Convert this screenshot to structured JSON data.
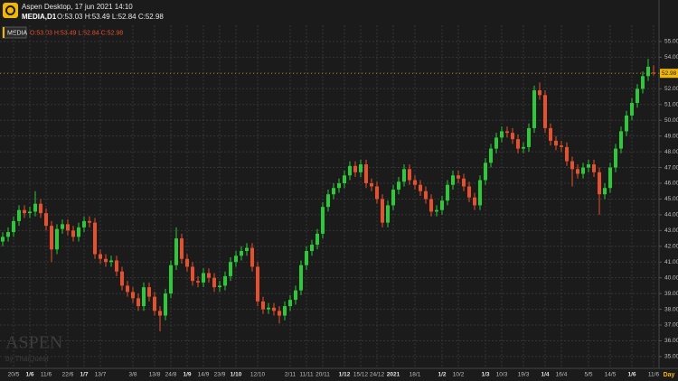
{
  "chart_data": {
    "type": "candlestick",
    "title": "Aspen Desktop, 17 jun 2021 14:10",
    "symbol": "MEDIA,D1",
    "ohlc_text": "O:53.03 H:53.49 L:52.84 C:52.98",
    "legend_label": "MEDIA",
    "watermark": "ASPEN",
    "watermark_sub": "by ThaiQuest",
    "period": "Day",
    "up_color": "#2ec93a",
    "down_color": "#e5502f",
    "grid": true,
    "ylim": [
      34.25,
      56.03
    ],
    "yticks": [
      {
        "value": 35,
        "label": "35.00"
      },
      {
        "value": 36,
        "label": "36.00"
      },
      {
        "value": 37,
        "label": "37.00"
      },
      {
        "value": 38,
        "label": "38.00"
      },
      {
        "value": 39,
        "label": "39.00"
      },
      {
        "value": 40,
        "label": "40.00"
      },
      {
        "value": 41,
        "label": "41.00"
      },
      {
        "value": 42,
        "label": "42.00"
      },
      {
        "value": 43,
        "label": "43.00"
      },
      {
        "value": 44,
        "label": "44.00"
      },
      {
        "value": 45,
        "label": "45.00"
      },
      {
        "value": 46,
        "label": "46.00"
      },
      {
        "value": 47,
        "label": "47.00"
      },
      {
        "value": 48,
        "label": "48.00"
      },
      {
        "value": 49,
        "label": "49.00"
      },
      {
        "value": 50,
        "label": "50.00"
      },
      {
        "value": 51,
        "label": "51.00"
      },
      {
        "value": 52,
        "label": "52.00"
      },
      {
        "value": 53,
        "label": "53.00"
      },
      {
        "value": 54,
        "label": "54.00"
      },
      {
        "value": 55,
        "label": "55.00"
      }
    ],
    "categories": [
      null,
      null,
      "20/5",
      null,
      null,
      "1/6",
      null,
      null,
      "11/6",
      null,
      null,
      null,
      "22/6",
      null,
      null,
      "1/7",
      null,
      null,
      "13/7",
      null,
      null,
      null,
      null,
      null,
      "3/8",
      null,
      null,
      null,
      "13/8",
      null,
      null,
      "24/8",
      null,
      null,
      "1/9",
      null,
      null,
      "14/9",
      null,
      null,
      "23/9",
      null,
      null,
      "1/10",
      null,
      null,
      null,
      "12/10",
      null,
      null,
      null,
      null,
      null,
      "2/11",
      null,
      null,
      "11/11",
      null,
      null,
      "20/11",
      null,
      null,
      null,
      "1/12",
      null,
      null,
      "15/12",
      null,
      null,
      "24/12",
      null,
      null,
      "2021",
      null,
      null,
      null,
      "18/1",
      null,
      null,
      null,
      null,
      "1/2",
      null,
      null,
      "10/2",
      null,
      null,
      null,
      null,
      "1/3",
      null,
      null,
      "10/3",
      null,
      null,
      null,
      "19/3",
      null,
      null,
      null,
      "1/4",
      null,
      null,
      "16/4",
      null,
      null,
      null,
      null,
      "5/5",
      null,
      null,
      null,
      "14/5",
      null,
      null,
      null,
      "1/6",
      null,
      null,
      null,
      "11/6"
    ],
    "open": [
      42.3,
      42.6,
      42.9,
      43.6,
      44.3,
      44.1,
      44.2,
      44.7,
      44.1,
      43.3,
      41.8,
      43.1,
      43.4,
      43.0,
      42.6,
      43.2,
      43.6,
      43.5,
      41.5,
      41.2,
      41.0,
      41.1,
      40.4,
      39.5,
      39.1,
      38.7,
      38.2,
      39.4,
      38.8,
      37.9,
      37.6,
      39.0,
      40.8,
      42.5,
      41.2,
      40.7,
      39.8,
      39.7,
      40.3,
      40.0,
      39.4,
      39.5,
      40.1,
      41.0,
      41.4,
      41.7,
      41.9,
      40.7,
      38.5,
      38.0,
      38.1,
      37.9,
      37.6,
      38.2,
      38.6,
      39.2,
      40.8,
      41.7,
      42.1,
      42.8,
      44.5,
      45.3,
      45.7,
      46.0,
      46.5,
      47.1,
      46.7,
      47.2,
      46.0,
      45.8,
      45.0,
      43.5,
      44.6,
      45.6,
      46.1,
      46.9,
      46.2,
      45.9,
      45.5,
      45.0,
      44.2,
      44.3,
      44.9,
      45.9,
      46.5,
      46.3,
      45.8,
      45.1,
      44.6,
      46.2,
      47.3,
      48.2,
      48.9,
      49.3,
      49.2,
      48.8,
      48.2,
      48.3,
      49.5,
      51.9,
      51.6,
      49.5,
      48.7,
      48.4,
      48.3,
      47.4,
      46.9,
      46.6,
      47.0,
      47.2,
      46.7,
      45.3,
      45.7,
      47.0,
      48.2,
      49.3,
      50.3,
      51.1,
      52.0,
      52.8,
      53.03
    ],
    "high": [
      42.9,
      43.2,
      43.9,
      44.6,
      44.6,
      44.5,
      45.5,
      45.0,
      44.4,
      43.6,
      43.4,
      43.7,
      43.7,
      43.3,
      43.5,
      43.9,
      43.9,
      43.8,
      41.8,
      41.5,
      41.4,
      41.4,
      40.7,
      39.8,
      39.4,
      39.0,
      39.7,
      39.7,
      39.1,
      38.2,
      39.3,
      41.1,
      43.2,
      42.8,
      41.5,
      41.0,
      40.1,
      40.6,
      40.6,
      40.3,
      39.8,
      40.4,
      41.3,
      41.7,
      42.0,
      42.2,
      42.2,
      41.0,
      38.8,
      38.4,
      38.4,
      38.2,
      38.5,
      38.9,
      39.5,
      41.1,
      42.0,
      42.4,
      43.1,
      44.8,
      45.6,
      46.0,
      46.3,
      46.8,
      47.4,
      47.4,
      47.5,
      47.5,
      46.3,
      46.1,
      45.3,
      44.9,
      45.9,
      46.4,
      47.2,
      47.2,
      46.5,
      46.2,
      45.8,
      45.3,
      44.6,
      45.2,
      46.2,
      46.8,
      46.8,
      46.6,
      46.1,
      45.4,
      46.5,
      47.6,
      48.5,
      49.2,
      49.6,
      49.6,
      49.5,
      49.1,
      48.6,
      49.8,
      52.2,
      52.4,
      51.9,
      49.8,
      49.0,
      48.7,
      48.6,
      47.7,
      47.2,
      47.3,
      47.5,
      47.5,
      47.0,
      46.0,
      47.3,
      48.5,
      49.6,
      50.6,
      51.4,
      52.3,
      53.1,
      53.9,
      53.49
    ],
    "low": [
      42.0,
      42.3,
      42.6,
      43.3,
      43.8,
      43.8,
      43.9,
      43.8,
      43.0,
      41.0,
      41.5,
      42.8,
      42.7,
      42.3,
      42.3,
      42.9,
      43.2,
      41.2,
      40.9,
      40.7,
      40.7,
      40.1,
      39.2,
      38.8,
      38.4,
      37.9,
      37.9,
      38.5,
      37.6,
      36.6,
      37.3,
      38.7,
      40.5,
      40.9,
      40.4,
      39.5,
      39.4,
      39.4,
      39.7,
      39.1,
      39.1,
      39.2,
      39.8,
      40.7,
      41.1,
      41.4,
      40.4,
      38.2,
      37.7,
      37.7,
      37.6,
      37.1,
      37.3,
      37.9,
      38.3,
      38.9,
      40.5,
      41.4,
      41.8,
      42.5,
      44.2,
      45.0,
      45.4,
      45.7,
      46.2,
      46.4,
      46.4,
      45.7,
      45.5,
      44.7,
      43.2,
      43.2,
      44.3,
      45.3,
      45.8,
      45.9,
      45.6,
      45.2,
      44.7,
      43.9,
      43.9,
      44.0,
      44.6,
      45.6,
      46.0,
      45.5,
      44.8,
      44.3,
      44.3,
      45.9,
      47.0,
      47.9,
      48.6,
      48.9,
      48.5,
      47.9,
      47.9,
      48.0,
      49.2,
      51.3,
      49.2,
      48.4,
      48.1,
      48.0,
      47.1,
      45.8,
      46.3,
      46.3,
      46.7,
      46.4,
      44.0,
      45.0,
      45.4,
      46.7,
      47.9,
      49.0,
      50.0,
      50.8,
      51.7,
      52.5,
      52.84
    ],
    "close": [
      42.6,
      42.9,
      43.6,
      44.3,
      44.1,
      44.2,
      44.7,
      44.1,
      43.3,
      41.8,
      43.1,
      43.4,
      43.0,
      42.6,
      43.2,
      43.6,
      43.5,
      41.5,
      41.2,
      41.0,
      41.1,
      40.4,
      39.5,
      39.1,
      38.7,
      38.2,
      39.4,
      38.8,
      37.9,
      37.6,
      39.0,
      40.8,
      42.5,
      41.2,
      40.7,
      39.8,
      39.7,
      40.3,
      40.0,
      39.4,
      39.5,
      40.1,
      41.0,
      41.4,
      41.7,
      41.9,
      40.7,
      38.5,
      38.0,
      38.1,
      37.9,
      37.6,
      38.2,
      38.6,
      39.2,
      40.8,
      41.7,
      42.1,
      42.8,
      44.5,
      45.3,
      45.7,
      46.0,
      46.5,
      47.1,
      46.7,
      47.2,
      46.0,
      45.8,
      45.0,
      43.5,
      44.6,
      45.6,
      46.1,
      46.9,
      46.2,
      45.9,
      45.5,
      45.0,
      44.2,
      44.3,
      44.9,
      45.9,
      46.5,
      46.3,
      45.8,
      45.1,
      44.6,
      46.2,
      47.3,
      48.2,
      48.9,
      49.3,
      49.2,
      48.8,
      48.2,
      48.3,
      49.5,
      51.9,
      51.6,
      49.5,
      48.7,
      48.4,
      48.3,
      47.4,
      46.9,
      46.6,
      47.0,
      47.2,
      46.7,
      45.3,
      45.7,
      47.0,
      48.2,
      49.3,
      50.3,
      51.1,
      52.0,
      52.8,
      53.4,
      52.98
    ]
  }
}
